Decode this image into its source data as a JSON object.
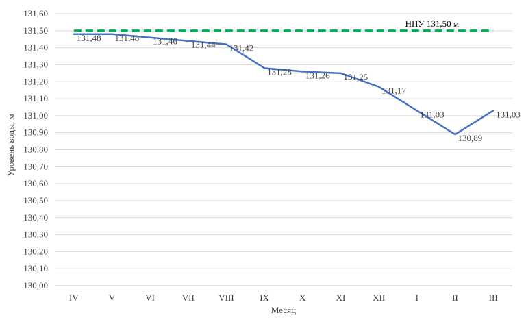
{
  "chart_data": {
    "type": "line",
    "title": "",
    "xlabel": "Месяц",
    "ylabel": "Уровень воды, м",
    "categories": [
      "IV",
      "V",
      "VI",
      "VII",
      "VIII",
      "IX",
      "X",
      "XI",
      "XII",
      "I",
      "II",
      "III"
    ],
    "series": [
      {
        "values": [
          131.48,
          131.48,
          131.46,
          131.44,
          131.42,
          131.28,
          131.26,
          131.25,
          131.17,
          131.03,
          130.89,
          131.03
        ],
        "labels": [
          "131,48",
          "131,48",
          "131,46",
          "131,44",
          "131,42",
          "131,28",
          "131,26",
          "131,25",
          "131,17",
          "131,03",
          "130,89",
          "131,03"
        ],
        "color": "#4472C4"
      }
    ],
    "reference_line": {
      "value": 131.5,
      "label": "НПУ  131,50 м",
      "color": "#00B050",
      "style": "dashed"
    },
    "ylim": [
      130.0,
      131.6
    ],
    "yticks": [
      "130,00",
      "130,10",
      "130,20",
      "130,30",
      "130,40",
      "130,50",
      "130,60",
      "130,70",
      "130,80",
      "130,90",
      "131,00",
      "131,10",
      "131,20",
      "131,30",
      "131,40",
      "131,50",
      "131,60"
    ],
    "grid": true,
    "grid_color": "#D9D9D9",
    "legend": "none"
  }
}
